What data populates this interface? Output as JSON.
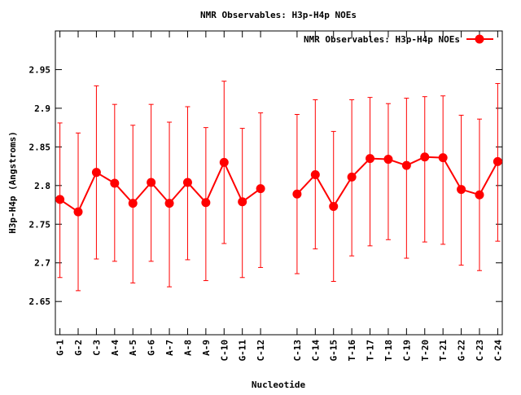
{
  "chart_data": {
    "type": "line",
    "title": "NMR Observables: H3p-H4p NOEs",
    "xlabel": "Nucleotide",
    "ylabel": "H3p-H4p (Angstroms)",
    "ylim": [
      2.607,
      3.0
    ],
    "xlim": [
      0.75,
      25.25
    ],
    "yticks": [
      2.65,
      2.7,
      2.75,
      2.8,
      2.85,
      2.9,
      2.95
    ],
    "ytick_labels": [
      "2.65",
      "2.7",
      "2.75",
      "2.8",
      "2.85",
      "2.9",
      "2.95"
    ],
    "legend": {
      "label": "NMR Observables: H3p-H4p NOEs",
      "position": "top-right"
    },
    "grid": false,
    "color": "#ff0000",
    "categories": [
      "G-1",
      "G-2",
      "C-3",
      "A-4",
      "A-5",
      "G-6",
      "A-7",
      "A-8",
      "A-9",
      "C-10",
      "G-11",
      "C-12",
      "C-13",
      "C-14",
      "G-15",
      "T-16",
      "T-17",
      "T-18",
      "C-19",
      "T-20",
      "T-21",
      "G-22",
      "C-23",
      "C-24"
    ],
    "x": [
      1,
      2,
      3,
      4,
      5,
      6,
      7,
      8,
      9,
      10,
      11,
      12,
      14,
      15,
      16,
      17,
      18,
      19,
      20,
      21,
      22,
      23,
      24,
      25
    ],
    "series": [
      {
        "name": "NMR Observables: H3p-H4p NOEs",
        "values": [
          2.782,
          2.766,
          2.817,
          2.803,
          2.777,
          2.804,
          2.777,
          2.804,
          2.778,
          2.83,
          2.779,
          2.796,
          2.789,
          2.814,
          2.773,
          2.811,
          2.835,
          2.834,
          2.826,
          2.837,
          2.836,
          2.795,
          2.788,
          2.831
        ],
        "err_high": [
          2.881,
          2.868,
          2.929,
          2.905,
          2.878,
          2.905,
          2.882,
          2.902,
          2.875,
          2.935,
          2.874,
          2.894,
          2.892,
          2.911,
          2.87,
          2.911,
          2.914,
          2.906,
          2.913,
          2.915,
          2.916,
          2.891,
          2.886,
          2.932
        ],
        "err_low": [
          2.681,
          2.664,
          2.705,
          2.702,
          2.674,
          2.702,
          2.669,
          2.704,
          2.677,
          2.725,
          2.681,
          2.694,
          2.686,
          2.718,
          2.676,
          2.709,
          2.722,
          2.73,
          2.706,
          2.727,
          2.724,
          2.697,
          2.69,
          2.728
        ]
      }
    ]
  }
}
